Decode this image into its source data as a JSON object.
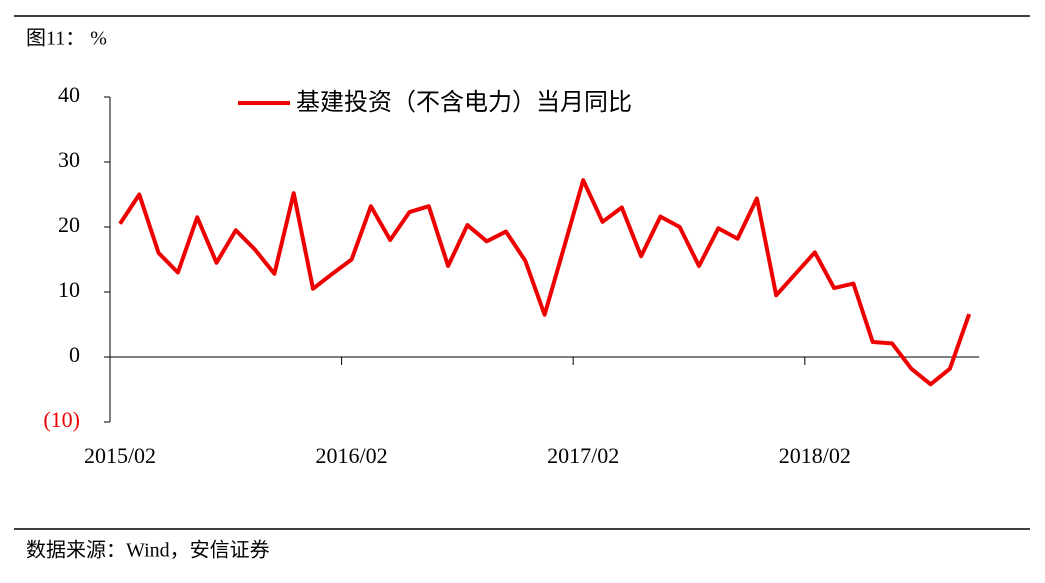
{
  "header": "图11：  %",
  "footer": "数据来源：Wind，安信证券",
  "chart_data": {
    "type": "line",
    "categories": [
      "2015/02",
      null,
      null,
      null,
      null,
      null,
      null,
      null,
      null,
      null,
      null,
      null,
      "2016/02",
      null,
      null,
      null,
      null,
      null,
      null,
      null,
      null,
      null,
      null,
      null,
      "2017/02",
      null,
      null,
      null,
      null,
      null,
      null,
      null,
      null,
      null,
      null,
      null,
      "2018/02",
      null,
      null,
      null,
      null,
      null,
      null,
      null,
      null
    ],
    "series": [
      {
        "name": "基建投资（不含电力）当月同比",
        "color": "#ee0000",
        "values": [
          20.5,
          25,
          16,
          13,
          21.5,
          14.5,
          19.5,
          16.5,
          12.8,
          25.2,
          10.5,
          12.8,
          15,
          23.2,
          18,
          22.3,
          23.2,
          14,
          20.3,
          17.8,
          19.3,
          14.8,
          6.5,
          16.8,
          27.2,
          20.8,
          23,
          15.5,
          21.6,
          20,
          14,
          19.8,
          18.2,
          24.4,
          9.5,
          12.8,
          16.1,
          10.6,
          11.3,
          2.3,
          2.1,
          -1.8,
          -4.2,
          -1.8,
          6.6
        ]
      }
    ],
    "ylim": [
      -10,
      40
    ],
    "yticks": [
      {
        "value": -10,
        "label": "(10)"
      },
      0,
      10,
      20,
      30,
      40
    ],
    "negative_tick_color": "#ee0000",
    "legend": "top"
  }
}
